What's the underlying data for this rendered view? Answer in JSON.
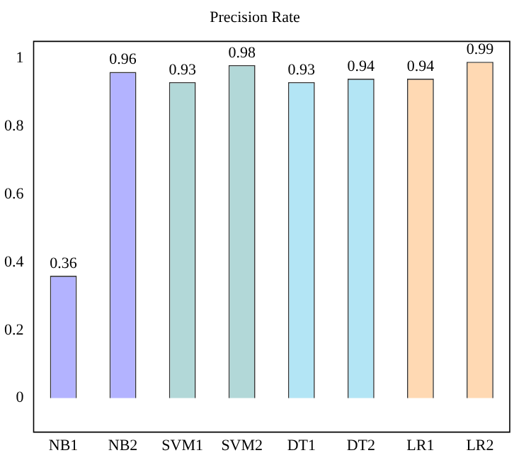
{
  "chart_data": {
    "type": "bar",
    "title": "Precision Rate",
    "categories": [
      "NB1",
      "NB2",
      "SVM1",
      "SVM2",
      "DT1",
      "DT2",
      "LR1",
      "LR2"
    ],
    "values": [
      0.36,
      0.96,
      0.93,
      0.98,
      0.93,
      0.94,
      0.94,
      0.99
    ],
    "colors": [
      "#b3b3ff",
      "#b3b3ff",
      "#b2d8d8",
      "#b2d8d8",
      "#b3e5f5",
      "#b3e5f5",
      "#ffd9b3",
      "#ffd9b3"
    ],
    "ylim": [
      -0.1,
      1.05
    ],
    "yticks": [
      0,
      0.2,
      0.4,
      0.6,
      0.8,
      1
    ],
    "data_labels": true,
    "grid": false,
    "legend": false
  }
}
